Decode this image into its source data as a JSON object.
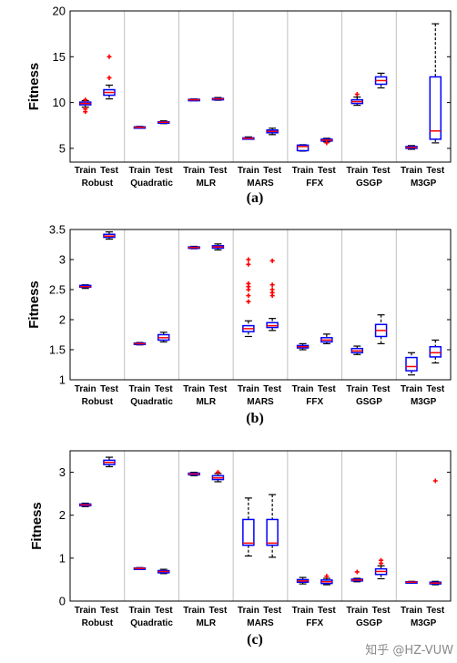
{
  "figure_id": "",
  "watermark": "知乎 @HZ-VUW",
  "chart_data": [
    {
      "type": "box",
      "panel_label": "(a)",
      "ylabel": "Fitness",
      "ylim": [
        3.5,
        20
      ],
      "yticks": [
        5,
        10,
        15,
        20
      ],
      "group_labels": [
        "Robust",
        "Quadratic",
        "MLR",
        "MARS",
        "FFX",
        "GSGP",
        "M3GP"
      ],
      "sub_labels": [
        "Train",
        "Test"
      ],
      "grid": "vertical separators between groups",
      "boxes": [
        {
          "group": "Robust",
          "split": "Train",
          "min": 9.5,
          "q1": 9.75,
          "median": 9.9,
          "q3": 10.05,
          "max": 10.2,
          "outliers": [
            9.0,
            9.3,
            10.3
          ]
        },
        {
          "group": "Robust",
          "split": "Test",
          "min": 10.4,
          "q1": 10.8,
          "median": 11.1,
          "q3": 11.4,
          "max": 11.9,
          "outliers": [
            12.7,
            15.0
          ]
        },
        {
          "group": "Quadratic",
          "split": "Train",
          "min": 7.2,
          "q1": 7.25,
          "median": 7.3,
          "q3": 7.35,
          "max": 7.4,
          "outliers": []
        },
        {
          "group": "Quadratic",
          "split": "Test",
          "min": 7.7,
          "q1": 7.8,
          "median": 7.85,
          "q3": 7.9,
          "max": 8.0,
          "outliers": []
        },
        {
          "group": "MLR",
          "split": "Train",
          "min": 10.2,
          "q1": 10.25,
          "median": 10.3,
          "q3": 10.35,
          "max": 10.4,
          "outliers": []
        },
        {
          "group": "MLR",
          "split": "Test",
          "min": 10.25,
          "q1": 10.35,
          "median": 10.4,
          "q3": 10.45,
          "max": 10.55,
          "outliers": []
        },
        {
          "group": "MARS",
          "split": "Train",
          "min": 6.0,
          "q1": 6.05,
          "median": 6.1,
          "q3": 6.15,
          "max": 6.25,
          "outliers": []
        },
        {
          "group": "MARS",
          "split": "Test",
          "min": 6.5,
          "q1": 6.7,
          "median": 6.85,
          "q3": 7.0,
          "max": 7.2,
          "outliers": []
        },
        {
          "group": "FFX",
          "split": "Train",
          "min": 4.7,
          "q1": 4.75,
          "median": 5.2,
          "q3": 5.35,
          "max": 5.4,
          "outliers": []
        },
        {
          "group": "FFX",
          "split": "Test",
          "min": 5.7,
          "q1": 5.8,
          "median": 5.9,
          "q3": 6.0,
          "max": 6.1,
          "outliers": [
            5.6
          ]
        },
        {
          "group": "GSGP",
          "split": "Train",
          "min": 9.7,
          "q1": 9.9,
          "median": 10.1,
          "q3": 10.3,
          "max": 10.6,
          "outliers": [
            10.9
          ]
        },
        {
          "group": "GSGP",
          "split": "Test",
          "min": 11.6,
          "q1": 12.0,
          "median": 12.4,
          "q3": 12.8,
          "max": 13.2,
          "outliers": []
        },
        {
          "group": "M3GP",
          "split": "Train",
          "min": 4.9,
          "q1": 5.0,
          "median": 5.1,
          "q3": 5.2,
          "max": 5.3,
          "outliers": []
        },
        {
          "group": "M3GP",
          "split": "Test",
          "min": 5.6,
          "q1": 6.0,
          "median": 6.9,
          "q3": 12.8,
          "max": 18.6,
          "outliers": []
        }
      ]
    },
    {
      "type": "box",
      "panel_label": "(b)",
      "ylabel": "Fitness",
      "ylim": [
        1,
        3.5
      ],
      "yticks": [
        1,
        1.5,
        2,
        2.5,
        3,
        3.5
      ],
      "group_labels": [
        "Robust",
        "Quadratic",
        "MLR",
        "MARS",
        "FFX",
        "GSGP",
        "M3GP"
      ],
      "sub_labels": [
        "Train",
        "Test"
      ],
      "grid": "vertical separators between groups",
      "boxes": [
        {
          "group": "Robust",
          "split": "Train",
          "min": 2.52,
          "q1": 2.54,
          "median": 2.55,
          "q3": 2.57,
          "max": 2.58,
          "outliers": []
        },
        {
          "group": "Robust",
          "split": "Test",
          "min": 3.34,
          "q1": 3.37,
          "median": 3.39,
          "q3": 3.42,
          "max": 3.46,
          "outliers": []
        },
        {
          "group": "Quadratic",
          "split": "Train",
          "min": 1.58,
          "q1": 1.59,
          "median": 1.6,
          "q3": 1.61,
          "max": 1.62,
          "outliers": []
        },
        {
          "group": "Quadratic",
          "split": "Test",
          "min": 1.63,
          "q1": 1.66,
          "median": 1.7,
          "q3": 1.75,
          "max": 1.79,
          "outliers": []
        },
        {
          "group": "MLR",
          "split": "Train",
          "min": 3.18,
          "q1": 3.19,
          "median": 3.2,
          "q3": 3.21,
          "max": 3.22,
          "outliers": []
        },
        {
          "group": "MLR",
          "split": "Test",
          "min": 3.16,
          "q1": 3.19,
          "median": 3.21,
          "q3": 3.23,
          "max": 3.26,
          "outliers": []
        },
        {
          "group": "MARS",
          "split": "Train",
          "min": 1.72,
          "q1": 1.8,
          "median": 1.85,
          "q3": 1.9,
          "max": 1.98,
          "outliers": [
            2.3,
            2.4,
            2.5,
            2.55,
            2.6,
            2.92,
            3.0
          ]
        },
        {
          "group": "MARS",
          "split": "Test",
          "min": 1.82,
          "q1": 1.87,
          "median": 1.9,
          "q3": 1.95,
          "max": 2.02,
          "outliers": [
            2.4,
            2.45,
            2.5,
            2.58,
            2.98
          ]
        },
        {
          "group": "FFX",
          "split": "Train",
          "min": 1.5,
          "q1": 1.53,
          "median": 1.55,
          "q3": 1.57,
          "max": 1.6,
          "outliers": []
        },
        {
          "group": "FFX",
          "split": "Test",
          "min": 1.6,
          "q1": 1.63,
          "median": 1.66,
          "q3": 1.7,
          "max": 1.76,
          "outliers": []
        },
        {
          "group": "GSGP",
          "split": "Train",
          "min": 1.42,
          "q1": 1.45,
          "median": 1.48,
          "q3": 1.52,
          "max": 1.56,
          "outliers": []
        },
        {
          "group": "GSGP",
          "split": "Test",
          "min": 1.6,
          "q1": 1.72,
          "median": 1.82,
          "q3": 1.92,
          "max": 2.08,
          "outliers": []
        },
        {
          "group": "M3GP",
          "split": "Train",
          "min": 1.08,
          "q1": 1.15,
          "median": 1.22,
          "q3": 1.37,
          "max": 1.45,
          "outliers": []
        },
        {
          "group": "M3GP",
          "split": "Test",
          "min": 1.28,
          "q1": 1.38,
          "median": 1.45,
          "q3": 1.55,
          "max": 1.66,
          "outliers": []
        }
      ]
    },
    {
      "type": "box",
      "panel_label": "(c)",
      "ylabel": "Fitness",
      "ylim": [
        0,
        3.5
      ],
      "yticks": [
        0,
        1,
        2,
        3
      ],
      "group_labels": [
        "Robust",
        "Quadratic",
        "MLR",
        "MARS",
        "FFX",
        "GSGP",
        "M3GP"
      ],
      "sub_labels": [
        "Train",
        "Test"
      ],
      "grid": "vertical separators between groups",
      "boxes": [
        {
          "group": "Robust",
          "split": "Train",
          "min": 2.2,
          "q1": 2.22,
          "median": 2.24,
          "q3": 2.26,
          "max": 2.28,
          "outliers": []
        },
        {
          "group": "Robust",
          "split": "Test",
          "min": 3.13,
          "q1": 3.18,
          "median": 3.23,
          "q3": 3.28,
          "max": 3.35,
          "outliers": []
        },
        {
          "group": "Quadratic",
          "split": "Train",
          "min": 0.74,
          "q1": 0.75,
          "median": 0.76,
          "q3": 0.77,
          "max": 0.78,
          "outliers": []
        },
        {
          "group": "Quadratic",
          "split": "Test",
          "min": 0.64,
          "q1": 0.66,
          "median": 0.69,
          "q3": 0.71,
          "max": 0.74,
          "outliers": []
        },
        {
          "group": "MLR",
          "split": "Train",
          "min": 2.92,
          "q1": 2.94,
          "median": 2.96,
          "q3": 2.98,
          "max": 3.0,
          "outliers": []
        },
        {
          "group": "MLR",
          "split": "Test",
          "min": 2.78,
          "q1": 2.83,
          "median": 2.87,
          "q3": 2.92,
          "max": 2.97,
          "outliers": [
            3.0
          ]
        },
        {
          "group": "MARS",
          "split": "Train",
          "min": 1.05,
          "q1": 1.3,
          "median": 1.35,
          "q3": 1.9,
          "max": 2.4,
          "outliers": []
        },
        {
          "group": "MARS",
          "split": "Test",
          "min": 1.02,
          "q1": 1.3,
          "median": 1.35,
          "q3": 1.9,
          "max": 2.48,
          "outliers": []
        },
        {
          "group": "FFX",
          "split": "Train",
          "min": 0.4,
          "q1": 0.44,
          "median": 0.47,
          "q3": 0.5,
          "max": 0.55,
          "outliers": []
        },
        {
          "group": "FFX",
          "split": "Test",
          "min": 0.38,
          "q1": 0.41,
          "median": 0.45,
          "q3": 0.49,
          "max": 0.53,
          "outliers": [
            0.58
          ]
        },
        {
          "group": "GSGP",
          "split": "Train",
          "min": 0.45,
          "q1": 0.47,
          "median": 0.49,
          "q3": 0.51,
          "max": 0.53,
          "outliers": [
            0.68
          ]
        },
        {
          "group": "GSGP",
          "split": "Test",
          "min": 0.52,
          "q1": 0.62,
          "median": 0.69,
          "q3": 0.75,
          "max": 0.82,
          "outliers": [
            0.88,
            0.95
          ]
        },
        {
          "group": "M3GP",
          "split": "Train",
          "min": 0.42,
          "q1": 0.43,
          "median": 0.44,
          "q3": 0.45,
          "max": 0.46,
          "outliers": []
        },
        {
          "group": "M3GP",
          "split": "Test",
          "min": 0.38,
          "q1": 0.4,
          "median": 0.42,
          "q3": 0.44,
          "max": 0.46,
          "outliers": [
            2.8
          ]
        }
      ]
    }
  ],
  "colors": {
    "box": "#0000ff",
    "median": "#ff0000",
    "outlier": "#ff0000",
    "whisker": "#000000",
    "separator": "#c0c0c0",
    "axis": "#000000"
  }
}
